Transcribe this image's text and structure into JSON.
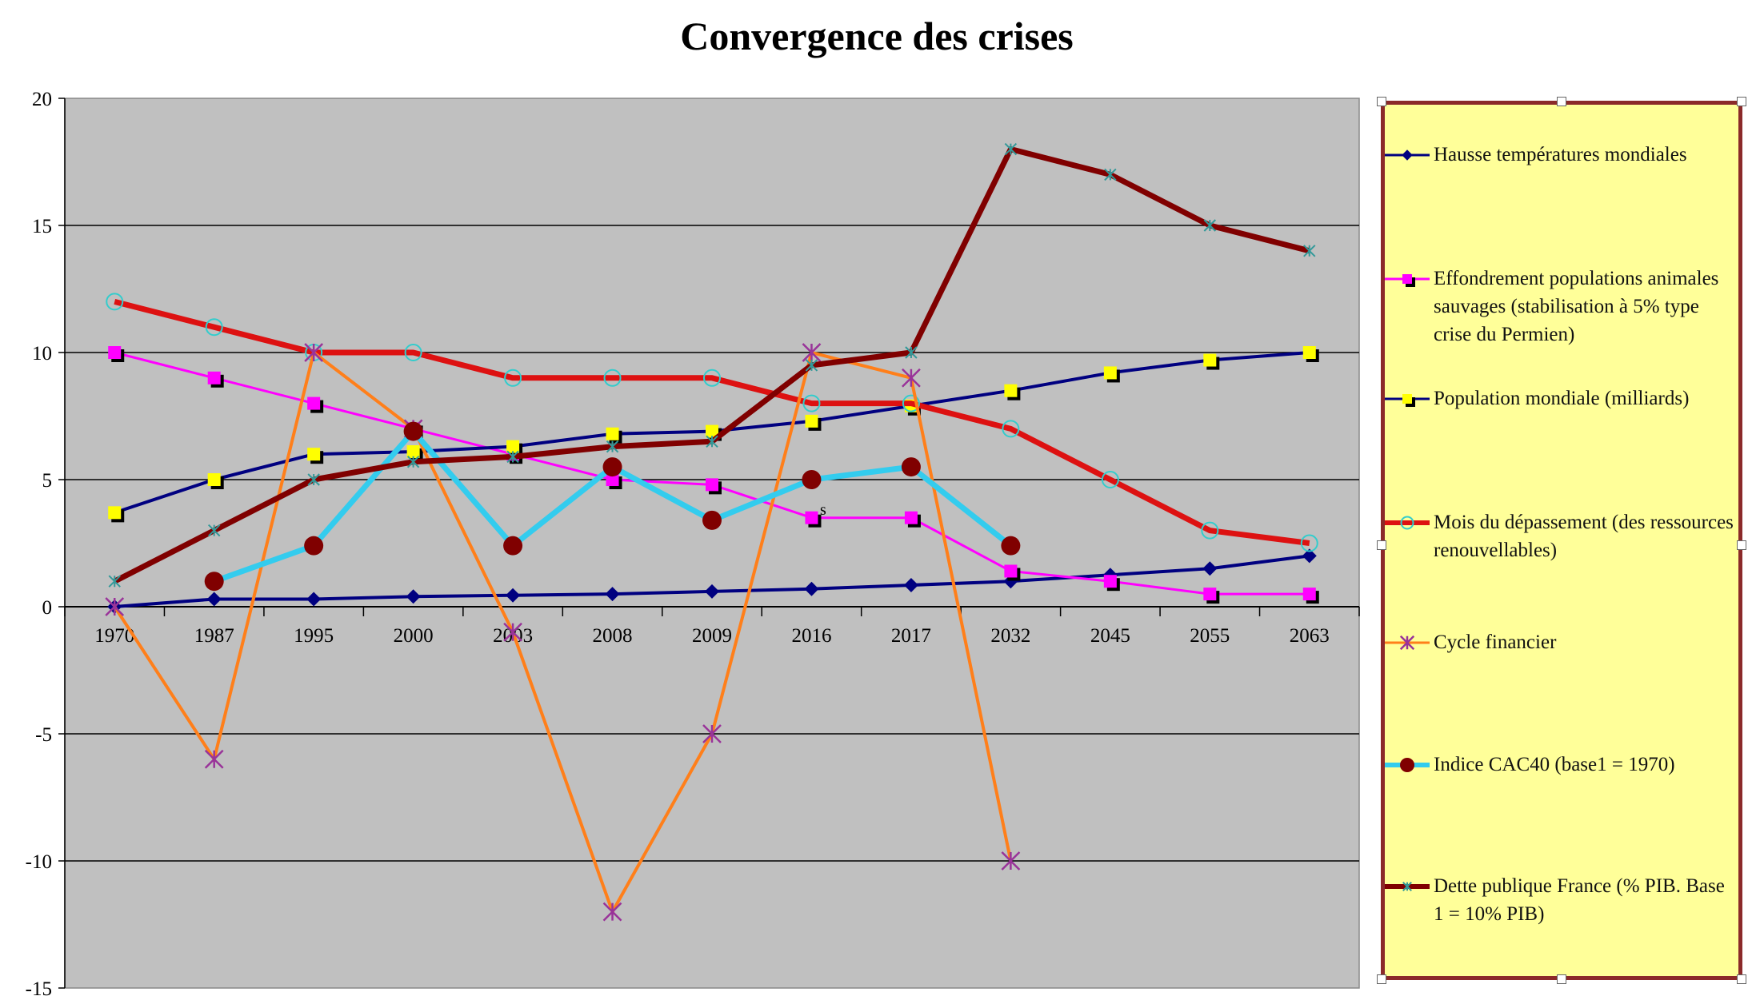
{
  "chart_data": {
    "type": "line",
    "title": "Convergence des crises",
    "xlabel": "",
    "ylabel": "",
    "ylim": [
      -15,
      20
    ],
    "yticks": [
      -15,
      -10,
      -5,
      0,
      5,
      10,
      15,
      20
    ],
    "grid": true,
    "legend_position": "right",
    "plot_background": "#c0c0c0",
    "legend_background": "#ffff99",
    "categories": [
      "1970",
      "1987",
      "1995",
      "2000",
      "2003",
      "2008",
      "2009",
      "2016",
      "2017",
      "2032",
      "2045",
      "2055",
      "2063"
    ],
    "series": [
      {
        "name": "Hausse températures mondiales",
        "line_color": "#000080",
        "marker": "diamond",
        "marker_color": "#000080",
        "values": [
          0,
          0.3,
          0.3,
          0.4,
          0.45,
          0.5,
          0.6,
          0.7,
          0.85,
          1.0,
          1.25,
          1.5,
          2.0
        ]
      },
      {
        "name": "Effondrement populations animales sauvages (stabilisation à 5% type crise du Permien)",
        "line_color": "#ff00ff",
        "marker": "square",
        "marker_color": "#ff00ff",
        "values": [
          10,
          9,
          8,
          7,
          6,
          5,
          4.8,
          3.5,
          3.5,
          1.4,
          1.0,
          0.5,
          0.5
        ]
      },
      {
        "name": "Population mondiale (milliards)",
        "line_color": "#000080",
        "marker": "square",
        "marker_color": "#ffff00",
        "values": [
          3.7,
          5,
          6,
          6.1,
          6.3,
          6.8,
          6.9,
          7.3,
          7.9,
          8.5,
          9.2,
          9.7,
          10
        ]
      },
      {
        "name": "Mois du dépassement (des ressources renouvellables)",
        "line_color": "#dd1111",
        "marker": "circle-open",
        "marker_color": "#33cccc",
        "values": [
          12,
          11,
          10,
          10,
          9,
          9,
          9,
          8,
          8,
          7,
          5,
          3,
          2.5
        ]
      },
      {
        "name": "Cycle financier",
        "line_color": "#ff7f1a",
        "marker": "star",
        "marker_color": "#993399",
        "values": [
          0,
          -6,
          10,
          7,
          -1,
          -12,
          -5,
          10,
          9,
          -10,
          null,
          null,
          null
        ]
      },
      {
        "name": "Indice CAC40 (base1 = 1970)",
        "line_color": "#33ccee",
        "marker": "circle",
        "marker_color": "#800000",
        "values": [
          null,
          1,
          2.4,
          6.9,
          2.4,
          5.5,
          3.4,
          5,
          5.5,
          2.4,
          null,
          null,
          null
        ]
      },
      {
        "name": "Dette publique France (% PIB. Base 1 = 10% PIB)",
        "line_color": "#800000",
        "marker": "asterisk",
        "marker_color": "#339999",
        "values": [
          1,
          3,
          5,
          5.7,
          5.9,
          6.3,
          6.5,
          9.5,
          10,
          18,
          17,
          15,
          14
        ]
      }
    ],
    "annotations": [
      "s"
    ]
  }
}
